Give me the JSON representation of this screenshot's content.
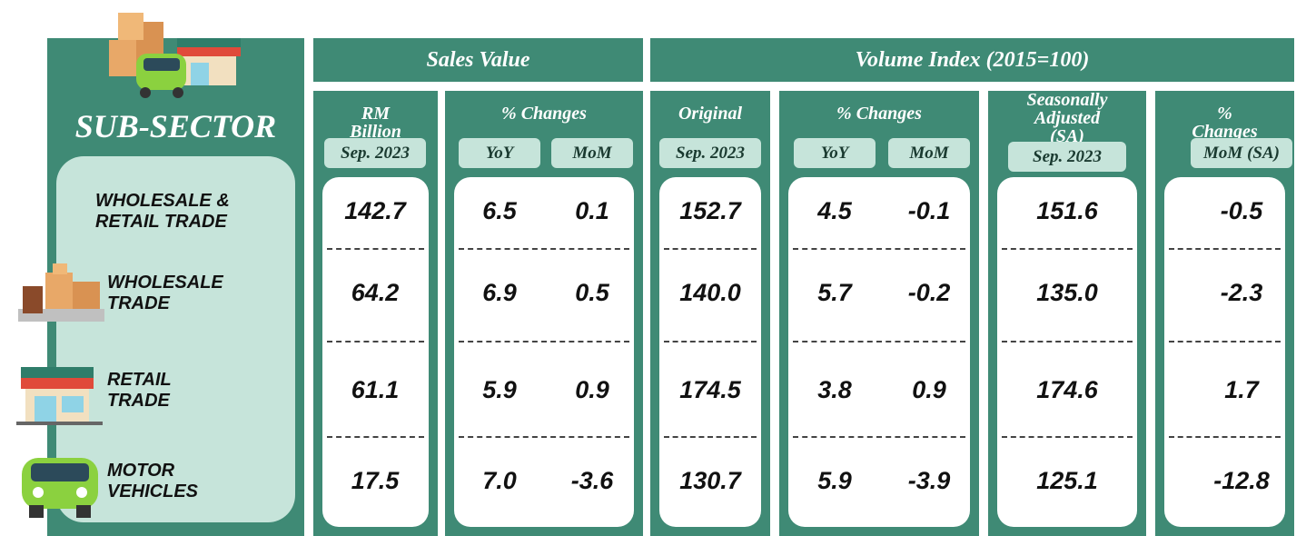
{
  "header": {
    "sub_sector": "SUB-SECTOR",
    "sales_value": "Sales Value",
    "volume_index": "Volume Index (2015=100)"
  },
  "columns": [
    {
      "title": "RM Billion",
      "sub": [
        "Sep. 2023"
      ]
    },
    {
      "title": "% Changes",
      "sub": [
        "YoY",
        "MoM"
      ]
    },
    {
      "title": "Original",
      "sub": [
        "Sep. 2023"
      ]
    },
    {
      "title": "% Changes",
      "sub": [
        "YoY",
        "MoM"
      ]
    },
    {
      "title": "Seasonally Adjusted (SA)",
      "sub": [
        "Sep. 2023"
      ]
    },
    {
      "title": "% Changes",
      "sub": [
        "MoM (SA)"
      ]
    }
  ],
  "rows": [
    {
      "label": [
        "WHOLESALE &",
        "RETAIL TRADE"
      ],
      "values": [
        "142.7",
        "6.5",
        "0.1",
        "152.7",
        "4.5",
        "-0.1",
        "151.6",
        "-0.5"
      ]
    },
    {
      "label": [
        "WHOLESALE",
        "TRADE"
      ],
      "values": [
        "64.2",
        "6.9",
        "0.5",
        "140.0",
        "5.7",
        "-0.2",
        "135.0",
        "-2.3"
      ]
    },
    {
      "label": [
        "RETAIL",
        "TRADE"
      ],
      "values": [
        "61.1",
        "5.9",
        "0.9",
        "174.5",
        "3.8",
        "0.9",
        "174.6",
        "1.7"
      ]
    },
    {
      "label": [
        "MOTOR",
        "VEHICLES"
      ],
      "values": [
        "17.5",
        "7.0",
        "-3.6",
        "130.7",
        "5.9",
        "-3.9",
        "125.1",
        "-12.8"
      ]
    }
  ]
}
